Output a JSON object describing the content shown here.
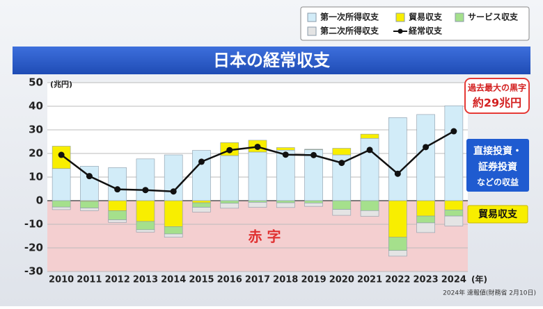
{
  "chart_data": {
    "type": "bar",
    "stacked": true,
    "title": "日本の経常収支",
    "y_unit": "(兆円)",
    "x_unit": "(年)",
    "categories": [
      "2010",
      "2011",
      "2012",
      "2013",
      "2014",
      "2015",
      "2016",
      "2017",
      "2018",
      "2019",
      "2020",
      "2021",
      "2022",
      "2023",
      "2024"
    ],
    "series": [
      {
        "name": "第一次所得収支",
        "color": "#d2ecf8",
        "type": "bar",
        "values": [
          13.6,
          14.6,
          14.0,
          17.7,
          19.4,
          21.3,
          19.1,
          20.6,
          21.4,
          21.6,
          19.4,
          26.4,
          35.2,
          36.5,
          40.2
        ]
      },
      {
        "name": "貿易収支",
        "color": "#f8ee00",
        "type": "bar",
        "values": [
          9.5,
          -0.3,
          -4.3,
          -8.8,
          -11.0,
          -0.9,
          5.5,
          5.0,
          1.1,
          0.2,
          2.8,
          1.8,
          -15.5,
          -6.5,
          -3.9
        ]
      },
      {
        "name": "サービス収支",
        "color": "#a5e08c",
        "type": "bar",
        "values": [
          -2.7,
          -2.8,
          -3.8,
          -3.5,
          -3.1,
          -1.9,
          -1.1,
          -0.7,
          -0.9,
          -1.0,
          -3.7,
          -4.2,
          -5.6,
          -2.9,
          -2.6
        ]
      },
      {
        "name": "第二次所得収支",
        "color": "#e4e4e4",
        "type": "bar",
        "values": [
          -1.1,
          -1.1,
          -1.1,
          -1.0,
          -1.4,
          -2.0,
          -2.1,
          -2.1,
          -2.0,
          -1.4,
          -2.5,
          -2.4,
          -2.4,
          -4.1,
          -4.2
        ]
      },
      {
        "name": "経常収支",
        "color": "#111111",
        "type": "line",
        "values": [
          19.4,
          10.4,
          4.8,
          4.5,
          3.9,
          16.5,
          21.4,
          22.8,
          19.5,
          19.3,
          16.0,
          21.5,
          11.4,
          22.7,
          29.4
        ]
      }
    ],
    "ylim": [
      -30,
      50
    ],
    "yticks": [
      -30,
      -20,
      -10,
      0,
      10,
      20,
      30,
      40,
      50
    ],
    "grid": true,
    "deficit_label": "赤 字",
    "callout": [
      "過去最大の黒字",
      "約29兆円"
    ],
    "primary_note": [
      "直接投資・",
      "証券投資",
      "などの収益"
    ],
    "trade_note": "貿易収支",
    "footnote": "2024年 速報値(財務省 2月10日)"
  }
}
